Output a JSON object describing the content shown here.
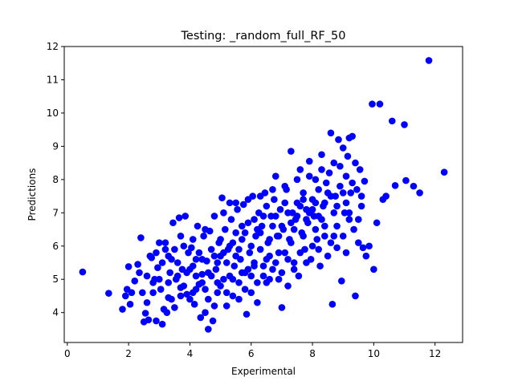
{
  "chart_data": {
    "type": "scatter",
    "title": "Testing: _random_full_RF_50",
    "xlabel": "Experimental",
    "ylabel": "Predictions",
    "xlim": [
      -0.1,
      12.9
    ],
    "ylim": [
      3.1,
      12.0
    ],
    "xticks": [
      0,
      2,
      4,
      6,
      8,
      10,
      12
    ],
    "yticks": [
      4,
      5,
      6,
      7,
      8,
      9,
      10,
      11,
      12
    ],
    "grid": false,
    "marker_color": "#0000ff",
    "series": [
      {
        "points": [
          [
            0.5,
            5.22
          ],
          [
            1.35,
            4.58
          ],
          [
            1.8,
            4.1
          ],
          [
            1.9,
            4.5
          ],
          [
            1.95,
            4.7
          ],
          [
            2.0,
            5.38
          ],
          [
            2.05,
            4.25
          ],
          [
            2.1,
            4.6
          ],
          [
            2.2,
            4.95
          ],
          [
            2.3,
            5.45
          ],
          [
            2.35,
            5.2
          ],
          [
            2.4,
            6.25
          ],
          [
            2.45,
            4.6
          ],
          [
            2.5,
            3.72
          ],
          [
            2.55,
            3.98
          ],
          [
            2.6,
            4.3
          ],
          [
            2.65,
            3.78
          ],
          [
            2.7,
            5.7
          ],
          [
            2.75,
            5.65
          ],
          [
            2.8,
            4.6
          ],
          [
            2.85,
            5.0
          ],
          [
            2.9,
            3.75
          ],
          [
            2.95,
            5.35
          ],
          [
            3.0,
            6.1
          ],
          [
            3.05,
            4.7
          ],
          [
            3.1,
            3.65
          ],
          [
            3.15,
            4.1
          ],
          [
            3.2,
            5.9
          ],
          [
            3.25,
            4.0
          ],
          [
            3.3,
            4.45
          ],
          [
            3.35,
            5.2
          ],
          [
            3.4,
            5.6
          ],
          [
            3.45,
            6.7
          ],
          [
            3.5,
            4.15
          ],
          [
            3.55,
            5.0
          ],
          [
            3.6,
            5.5
          ],
          [
            3.65,
            6.85
          ],
          [
            3.7,
            4.75
          ],
          [
            3.75,
            5.3
          ],
          [
            3.8,
            6.0
          ],
          [
            3.85,
            6.9
          ],
          [
            3.9,
            4.55
          ],
          [
            3.95,
            5.8
          ],
          [
            4.0,
            4.4
          ],
          [
            4.05,
            5.95
          ],
          [
            4.1,
            6.2
          ],
          [
            4.15,
            4.25
          ],
          [
            4.2,
            5.6
          ],
          [
            4.25,
            6.6
          ],
          [
            4.3,
            4.85
          ],
          [
            4.35,
            3.85
          ],
          [
            4.4,
            5.15
          ],
          [
            4.45,
            6.3
          ],
          [
            4.5,
            4.0
          ],
          [
            4.55,
            5.55
          ],
          [
            4.6,
            3.5
          ],
          [
            4.65,
            6.45
          ],
          [
            4.7,
            5.1
          ],
          [
            4.75,
            3.75
          ],
          [
            4.8,
            6.9
          ],
          [
            4.85,
            5.3
          ],
          [
            4.9,
            4.6
          ],
          [
            4.95,
            6.1
          ],
          [
            5.0,
            5.7
          ],
          [
            5.05,
            7.45
          ],
          [
            5.1,
            5.0
          ],
          [
            5.15,
            6.5
          ],
          [
            5.2,
            4.2
          ],
          [
            5.25,
            5.9
          ],
          [
            5.3,
            7.3
          ],
          [
            5.35,
            6.8
          ],
          [
            5.4,
            4.5
          ],
          [
            5.45,
            5.4
          ],
          [
            5.5,
            6.4
          ],
          [
            5.55,
            7.1
          ],
          [
            5.6,
            4.9
          ],
          [
            5.65,
            5.6
          ],
          [
            5.7,
            6.2
          ],
          [
            5.75,
            7.25
          ],
          [
            5.8,
            5.2
          ],
          [
            5.85,
            3.95
          ],
          [
            5.9,
            6.7
          ],
          [
            5.95,
            5.8
          ],
          [
            6.0,
            4.6
          ],
          [
            6.05,
            7.5
          ],
          [
            6.1,
            5.5
          ],
          [
            6.15,
            6.3
          ],
          [
            6.2,
            4.3
          ],
          [
            6.25,
            7.0
          ],
          [
            6.3,
            5.9
          ],
          [
            6.35,
            6.6
          ],
          [
            6.4,
            5.1
          ],
          [
            6.45,
            7.6
          ],
          [
            6.5,
            4.9
          ],
          [
            6.55,
            6.1
          ],
          [
            6.6,
            5.7
          ],
          [
            6.65,
            6.9
          ],
          [
            6.7,
            5.3
          ],
          [
            6.75,
            7.4
          ],
          [
            6.8,
            8.1
          ],
          [
            6.85,
            6.3
          ],
          [
            6.9,
            5.0
          ],
          [
            6.95,
            7.1
          ],
          [
            7.0,
            4.15
          ],
          [
            7.05,
            6.5
          ],
          [
            7.1,
            5.8
          ],
          [
            7.15,
            7.7
          ],
          [
            7.2,
            4.8
          ],
          [
            7.25,
            6.2
          ],
          [
            7.3,
            8.85
          ],
          [
            7.35,
            7.0
          ],
          [
            7.4,
            5.5
          ],
          [
            7.45,
            6.8
          ],
          [
            7.5,
            7.3
          ],
          [
            7.55,
            5.1
          ],
          [
            7.6,
            8.3
          ],
          [
            7.65,
            6.4
          ],
          [
            7.7,
            7.6
          ],
          [
            7.75,
            5.9
          ],
          [
            7.8,
            7.1
          ],
          [
            7.85,
            6.7
          ],
          [
            7.9,
            8.55
          ],
          [
            7.95,
            5.6
          ],
          [
            8.0,
            7.4
          ],
          [
            8.05,
            6.9
          ],
          [
            8.1,
            8.0
          ],
          [
            8.15,
            6.2
          ],
          [
            8.2,
            7.7
          ],
          [
            8.25,
            5.4
          ],
          [
            8.3,
            8.75
          ],
          [
            8.35,
            7.2
          ],
          [
            8.4,
            6.6
          ],
          [
            8.45,
            7.9
          ],
          [
            8.5,
            5.7
          ],
          [
            8.55,
            8.2
          ],
          [
            8.6,
            9.4
          ],
          [
            8.65,
            4.25
          ],
          [
            8.7,
            6.3
          ],
          [
            8.75,
            7.5
          ],
          [
            8.8,
            5.95
          ],
          [
            8.85,
            9.2
          ],
          [
            8.9,
            8.4
          ],
          [
            8.95,
            4.95
          ],
          [
            9.0,
            8.95
          ],
          [
            9.05,
            7.0
          ],
          [
            9.1,
            5.8
          ],
          [
            9.15,
            8.7
          ],
          [
            9.2,
            9.25
          ],
          [
            9.25,
            7.6
          ],
          [
            9.3,
            9.3
          ],
          [
            9.35,
            6.5
          ],
          [
            9.4,
            4.5
          ],
          [
            9.45,
            7.7
          ],
          [
            9.5,
            6.1
          ],
          [
            9.55,
            8.3
          ],
          [
            9.6,
            7.2
          ],
          [
            9.65,
            5.95
          ],
          [
            9.7,
            7.95
          ],
          [
            9.75,
            5.7
          ],
          [
            9.85,
            6.0
          ],
          [
            9.95,
            10.27
          ],
          [
            10.0,
            5.3
          ],
          [
            10.1,
            6.7
          ],
          [
            10.2,
            10.27
          ],
          [
            10.3,
            7.4
          ],
          [
            10.4,
            7.5
          ],
          [
            10.6,
            9.76
          ],
          [
            10.7,
            7.82
          ],
          [
            11.0,
            9.65
          ],
          [
            11.05,
            7.97
          ],
          [
            11.3,
            7.8
          ],
          [
            11.5,
            7.6
          ],
          [
            11.8,
            11.58
          ],
          [
            12.3,
            8.22
          ],
          [
            3.2,
            6.1
          ],
          [
            3.5,
            5.9
          ],
          [
            3.7,
            6.3
          ],
          [
            4.1,
            5.4
          ],
          [
            4.3,
            5.8
          ],
          [
            4.5,
            6.5
          ],
          [
            4.7,
            5.9
          ],
          [
            4.9,
            5.5
          ],
          [
            5.1,
            5.8
          ],
          [
            5.3,
            6.0
          ],
          [
            5.5,
            5.7
          ],
          [
            5.7,
            6.6
          ],
          [
            5.9,
            5.3
          ],
          [
            6.1,
            6.8
          ],
          [
            6.3,
            6.4
          ],
          [
            6.5,
            7.2
          ],
          [
            6.7,
            6.6
          ],
          [
            6.9,
            6.3
          ],
          [
            7.1,
            7.3
          ],
          [
            7.3,
            6.7
          ],
          [
            7.5,
            6.9
          ],
          [
            7.7,
            7.4
          ],
          [
            7.9,
            7.0
          ],
          [
            8.1,
            7.3
          ],
          [
            8.3,
            6.8
          ],
          [
            8.5,
            7.6
          ],
          [
            8.7,
            7.0
          ],
          [
            8.9,
            7.8
          ],
          [
            9.1,
            7.3
          ],
          [
            9.3,
            7.9
          ],
          [
            3.9,
            5.2
          ],
          [
            4.2,
            5.1
          ],
          [
            4.4,
            5.6
          ],
          [
            4.6,
            5.2
          ],
          [
            4.8,
            5.7
          ],
          [
            5.0,
            6.2
          ],
          [
            5.2,
            5.5
          ],
          [
            5.4,
            6.1
          ],
          [
            5.6,
            5.9
          ],
          [
            5.8,
            6.4
          ],
          [
            6.0,
            6.0
          ],
          [
            6.2,
            6.5
          ],
          [
            6.4,
            6.9
          ],
          [
            6.6,
            6.2
          ],
          [
            6.8,
            6.9
          ],
          [
            7.0,
            6.6
          ],
          [
            7.2,
            7.0
          ],
          [
            7.4,
            6.5
          ],
          [
            7.6,
            7.2
          ],
          [
            7.8,
            6.8
          ],
          [
            8.0,
            7.1
          ],
          [
            8.2,
            6.9
          ],
          [
            8.4,
            7.3
          ],
          [
            8.6,
            7.5
          ],
          [
            8.8,
            7.2
          ],
          [
            9.0,
            7.6
          ],
          [
            3.3,
            4.9
          ],
          [
            3.6,
            5.1
          ],
          [
            3.8,
            4.8
          ],
          [
            4.0,
            5.3
          ],
          [
            4.2,
            4.7
          ],
          [
            4.4,
            4.9
          ],
          [
            4.6,
            4.4
          ],
          [
            4.8,
            4.2
          ],
          [
            5.0,
            4.8
          ],
          [
            5.2,
            4.6
          ],
          [
            5.4,
            5.0
          ],
          [
            5.6,
            4.4
          ],
          [
            5.8,
            4.7
          ],
          [
            6.0,
            5.1
          ],
          [
            6.2,
            4.9
          ],
          [
            6.4,
            5.4
          ],
          [
            6.6,
            5.0
          ],
          [
            6.8,
            5.5
          ],
          [
            7.0,
            5.2
          ],
          [
            7.2,
            5.6
          ],
          [
            7.4,
            5.3
          ],
          [
            7.6,
            5.8
          ],
          [
            7.8,
            5.5
          ],
          [
            8.0,
            6.0
          ],
          [
            8.2,
            5.9
          ],
          [
            8.4,
            6.3
          ],
          [
            8.6,
            6.1
          ],
          [
            8.8,
            6.6
          ],
          [
            9.0,
            6.3
          ],
          [
            9.2,
            6.8
          ],
          [
            5.1,
            7.0
          ],
          [
            5.5,
            7.3
          ],
          [
            5.9,
            7.4
          ],
          [
            6.3,
            7.5
          ],
          [
            6.7,
            7.7
          ],
          [
            7.1,
            7.8
          ],
          [
            7.5,
            8.0
          ],
          [
            7.9,
            8.1
          ],
          [
            8.3,
            8.3
          ],
          [
            8.7,
            8.5
          ],
          [
            9.1,
            8.1
          ],
          [
            9.4,
            8.5
          ],
          [
            9.6,
            7.5
          ],
          [
            9.2,
            7.0
          ],
          [
            9.5,
            6.8
          ],
          [
            8.1,
            6.5
          ],
          [
            7.7,
            6.3
          ],
          [
            7.3,
            6.1
          ],
          [
            6.9,
            5.8
          ],
          [
            6.5,
            5.6
          ],
          [
            6.1,
            5.4
          ],
          [
            5.7,
            5.2
          ],
          [
            5.3,
            5.1
          ],
          [
            4.9,
            4.9
          ],
          [
            4.5,
            4.7
          ],
          [
            4.1,
            4.6
          ],
          [
            3.7,
            4.5
          ],
          [
            3.4,
            4.4
          ],
          [
            2.8,
            4.9
          ],
          [
            3.0,
            5.0
          ],
          [
            2.6,
            5.1
          ],
          [
            3.1,
            5.5
          ],
          [
            2.9,
            5.8
          ],
          [
            3.3,
            5.7
          ]
        ]
      }
    ]
  }
}
